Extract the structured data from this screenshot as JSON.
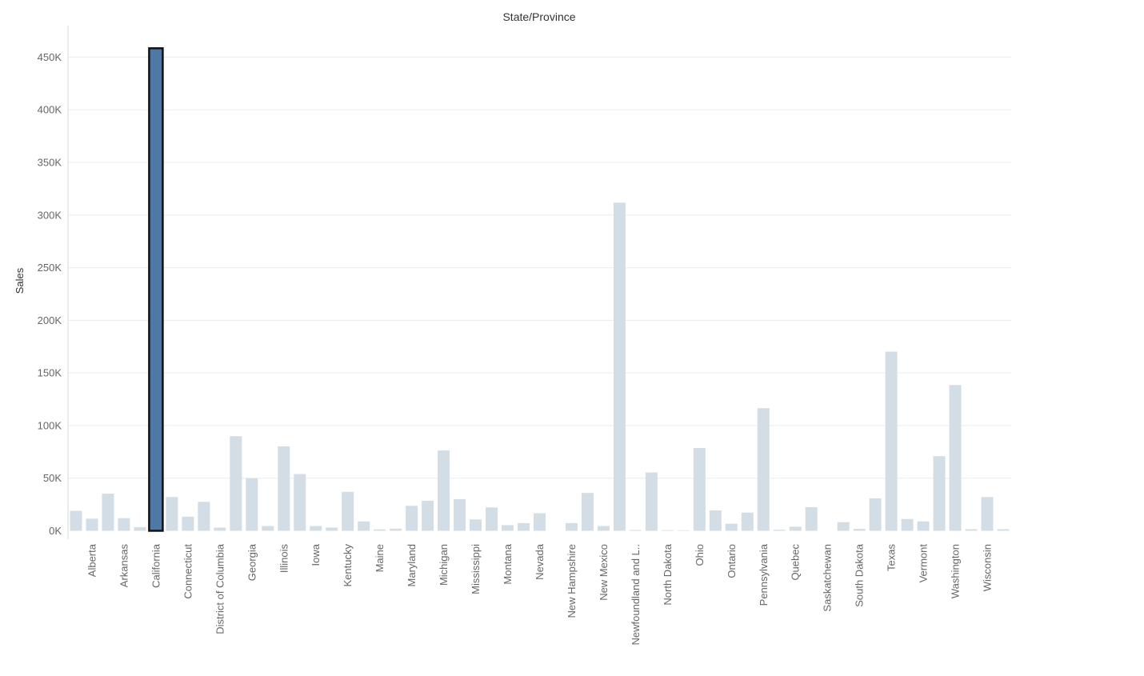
{
  "chart_data": {
    "type": "bar",
    "title": "State/Province",
    "xlabel": "",
    "ylabel": "Sales",
    "ylim": [
      -8000,
      480000
    ],
    "grid": true,
    "highlight_color": "#4e79a7",
    "bar_color": "#d3dde5",
    "y_ticks": [
      {
        "value": 0,
        "label": "0K"
      },
      {
        "value": 50000,
        "label": "50K"
      },
      {
        "value": 100000,
        "label": "100K"
      },
      {
        "value": 150000,
        "label": "150K"
      },
      {
        "value": 200000,
        "label": "200K"
      },
      {
        "value": 250000,
        "label": "250K"
      },
      {
        "value": 300000,
        "label": "300K"
      },
      {
        "value": 350000,
        "label": "350K"
      },
      {
        "value": 400000,
        "label": "400K"
      },
      {
        "value": 450000,
        "label": "450K"
      }
    ],
    "categories": [
      {
        "label": "",
        "value": 19000
      },
      {
        "label": "Alberta",
        "value": 11500
      },
      {
        "label": "",
        "value": 35300
      },
      {
        "label": "Arkansas",
        "value": 12000
      },
      {
        "label": "",
        "value": 3500
      },
      {
        "label": "California",
        "value": 457700,
        "highlighted": true
      },
      {
        "label": "",
        "value": 32100
      },
      {
        "label": "Connecticut",
        "value": 13400
      },
      {
        "label": "",
        "value": 27500
      },
      {
        "label": "District of Columbia",
        "value": 3000
      },
      {
        "label": "",
        "value": 89900
      },
      {
        "label": "Georgia",
        "value": 49900
      },
      {
        "label": "",
        "value": 4500
      },
      {
        "label": "Illinois",
        "value": 80200
      },
      {
        "label": "",
        "value": 53900
      },
      {
        "label": "Iowa",
        "value": 4500
      },
      {
        "label": "",
        "value": 3000
      },
      {
        "label": "Kentucky",
        "value": 37000
      },
      {
        "label": "",
        "value": 8900
      },
      {
        "label": "Maine",
        "value": 1300
      },
      {
        "label": "",
        "value": 2000
      },
      {
        "label": "Maryland",
        "value": 23700
      },
      {
        "label": "",
        "value": 28500
      },
      {
        "label": "Michigan",
        "value": 76300
      },
      {
        "label": "",
        "value": 30100
      },
      {
        "label": "Mississippi",
        "value": 10800
      },
      {
        "label": "",
        "value": 22200
      },
      {
        "label": "Montana",
        "value": 5400
      },
      {
        "label": "",
        "value": 7300
      },
      {
        "label": "Nevada",
        "value": 16700
      },
      {
        "label": "",
        "value": 0
      },
      {
        "label": "New Hampshire",
        "value": 7300
      },
      {
        "label": "",
        "value": 36000
      },
      {
        "label": "New Mexico",
        "value": 4500
      },
      {
        "label": "",
        "value": 311800
      },
      {
        "label": "Newfoundland and L..",
        "value": 800
      },
      {
        "label": "",
        "value": 55400
      },
      {
        "label": "North Dakota",
        "value": 600
      },
      {
        "label": "",
        "value": 500
      },
      {
        "label": "Ohio",
        "value": 78700
      },
      {
        "label": "",
        "value": 19400
      },
      {
        "label": "Ontario",
        "value": 6700
      },
      {
        "label": "",
        "value": 17300
      },
      {
        "label": "Pennsylvania",
        "value": 116500
      },
      {
        "label": "",
        "value": 1000
      },
      {
        "label": "Quebec",
        "value": 3900
      },
      {
        "label": "",
        "value": 22400
      },
      {
        "label": "Saskatchewan",
        "value": 0
      },
      {
        "label": "",
        "value": 8200
      },
      {
        "label": "South Dakota",
        "value": 1800
      },
      {
        "label": "",
        "value": 30800
      },
      {
        "label": "Texas",
        "value": 170200
      },
      {
        "label": "",
        "value": 11200
      },
      {
        "label": "Vermont",
        "value": 8900
      },
      {
        "label": "",
        "value": 70900
      },
      {
        "label": "Washington",
        "value": 138500
      },
      {
        "label": "",
        "value": 1500
      },
      {
        "label": "Wisconsin",
        "value": 32100
      },
      {
        "label": "",
        "value": 1500
      }
    ]
  }
}
